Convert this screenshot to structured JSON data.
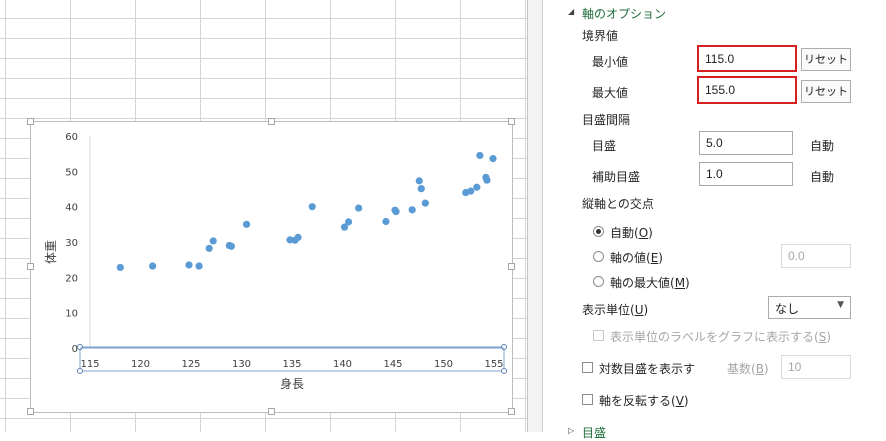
{
  "chart": {
    "xlabel": "身長",
    "ylabel": "体重"
  },
  "chart_data": {
    "type": "scatter",
    "xlabel": "身長",
    "ylabel": "体重",
    "xlim": [
      115,
      155
    ],
    "ylim": [
      0,
      60
    ],
    "x_ticks": [
      115,
      120,
      125,
      130,
      135,
      140,
      145,
      150,
      155
    ],
    "y_ticks": [
      0,
      10,
      20,
      30,
      40,
      50,
      60
    ],
    "grid": false,
    "legend": "none",
    "marker_color": "#5b9bd5",
    "series": [
      {
        "x": [
          118.0,
          121.2,
          124.8,
          125.8,
          126.8,
          127.2,
          128.8,
          129.0,
          130.5,
          134.8,
          135.3,
          135.6,
          137.0,
          140.2,
          140.6,
          141.6,
          144.3,
          145.2,
          145.3,
          146.9,
          147.6,
          147.8,
          148.2,
          152.2,
          152.7,
          153.3,
          153.6,
          154.2,
          154.3,
          154.9
        ],
        "y": [
          22.8,
          23.2,
          23.5,
          23.2,
          28.2,
          30.3,
          29.0,
          28.8,
          35.0,
          30.6,
          30.5,
          31.3,
          40.0,
          34.2,
          35.7,
          39.6,
          35.8,
          39.0,
          38.6,
          39.1,
          47.3,
          45.1,
          41.0,
          44.0,
          44.4,
          45.5,
          54.5,
          48.3,
          47.5,
          53.6
        ]
      }
    ]
  },
  "pane": {
    "section_title": "軸のオプション",
    "bounds_label": "境界値",
    "min_label": "最小値",
    "min_value": "115.0",
    "max_label": "最大値",
    "max_value": "155.0",
    "reset_label": "リセット",
    "units_label": "目盛間隔",
    "major_label": "目盛",
    "major_value": "5.0",
    "minor_label": "補助目盛",
    "minor_value": "1.0",
    "auto_label": "自動",
    "cross_label": "縦軸との交点",
    "cross_auto_text": "自動(",
    "cross_auto_key": "O",
    "cross_value_text": "軸の値(",
    "cross_value_key": "E",
    "cross_value_field": "0.0",
    "cross_max_text": "軸の最大値(",
    "cross_max_key": "M",
    "close_paren": ")",
    "display_units_text": "表示単位(",
    "display_units_key": "U",
    "display_units_value": "なし",
    "show_units_label_text": "表示単位のラベルをグラフに表示する(",
    "show_units_label_key": "S",
    "log_scale_text": "対数目盛を表示す",
    "log_base_text": "基数(",
    "log_base_key": "B",
    "log_base_value": "10",
    "reverse_text": "軸を反転する(",
    "reverse_key": "V",
    "next_section": "目盛"
  }
}
